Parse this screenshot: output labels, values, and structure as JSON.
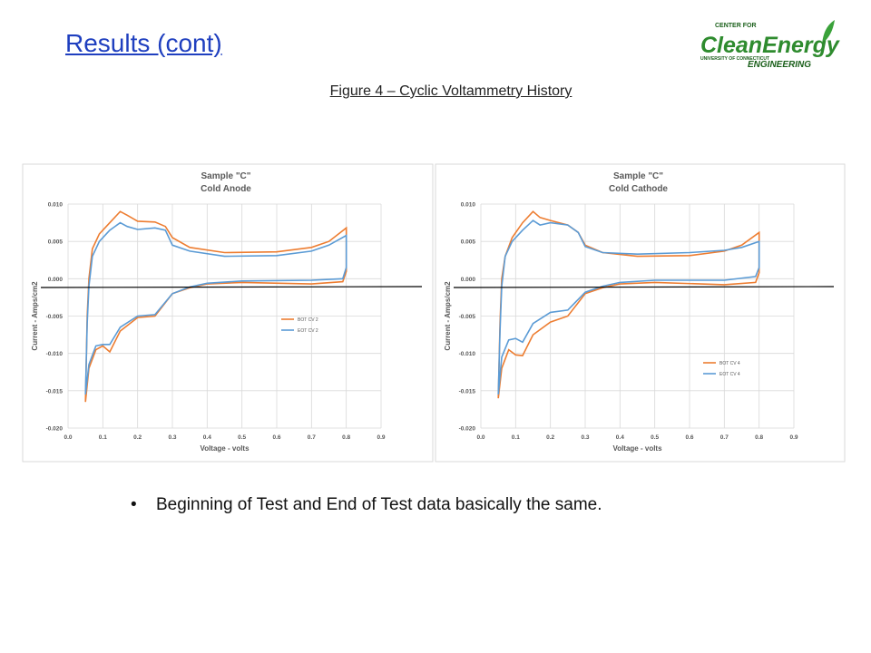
{
  "title": "Results (cont)",
  "caption": "Figure 4 – Cyclic Voltammetry History",
  "bullet": "Beginning of Test and End of Test data basically the same.",
  "logo": {
    "top": "CENTER FOR",
    "main": "CleanEnergy",
    "university": "UNIVERSITY OF CONNECTICUT",
    "bottom": "ENGINEERING"
  },
  "chart_data": [
    {
      "type": "line",
      "title": "Sample \"C\"",
      "subtitle": "Cold Anode",
      "x_label": "Voltage - volts",
      "y_label": "Current - Amps/cm2",
      "xlim": [
        0,
        0.9
      ],
      "ylim": [
        -0.02,
        0.01
      ],
      "grid": true,
      "legend": "right",
      "xticks": [
        {
          "value": 0,
          "label": "0.0"
        },
        0.1,
        0.2,
        0.3,
        0.4,
        0.5,
        0.6,
        0.7,
        0.8,
        0.9
      ],
      "yticks": [
        {
          "value": -0.02,
          "label": "-0.020"
        },
        {
          "value": -0.015,
          "label": "-0.015"
        },
        {
          "value": -0.01,
          "label": "-0.010"
        },
        {
          "value": -0.005,
          "label": "-0.005"
        },
        {
          "value": 0,
          "label": "0.000"
        },
        {
          "value": 0.005,
          "label": "0.005"
        },
        {
          "value": 0.01,
          "label": "0.010"
        }
      ],
      "series": [
        {
          "name": "BOT CV 2",
          "color": "#ed7d31",
          "x": [
            0.05,
            0.055,
            0.06,
            0.07,
            0.09,
            0.12,
            0.15,
            0.17,
            0.2,
            0.25,
            0.28,
            0.3,
            0.35,
            0.45,
            0.6,
            0.7,
            0.75,
            0.8,
            0.8,
            0.79,
            0.7,
            0.5,
            0.4,
            0.35,
            0.3,
            0.25,
            0.2,
            0.15,
            0.12,
            0.1,
            0.08,
            0.06,
            0.05
          ],
          "values": [
            -0.0165,
            -0.005,
            0.0,
            0.004,
            0.006,
            0.0075,
            0.009,
            0.0085,
            0.0077,
            0.0076,
            0.007,
            0.0055,
            0.0042,
            0.0035,
            0.0036,
            0.0042,
            0.005,
            0.0068,
            0.001,
            -0.0004,
            -0.0007,
            -0.0005,
            -0.0007,
            -0.0012,
            -0.002,
            -0.005,
            -0.0052,
            -0.007,
            -0.0098,
            -0.009,
            -0.0095,
            -0.012,
            -0.0165
          ]
        },
        {
          "name": "EOT CV 2",
          "color": "#5b9bd5",
          "x": [
            0.05,
            0.055,
            0.06,
            0.07,
            0.09,
            0.12,
            0.15,
            0.17,
            0.2,
            0.25,
            0.28,
            0.3,
            0.35,
            0.45,
            0.6,
            0.7,
            0.75,
            0.8,
            0.8,
            0.79,
            0.7,
            0.5,
            0.4,
            0.35,
            0.3,
            0.25,
            0.2,
            0.15,
            0.12,
            0.1,
            0.08,
            0.06,
            0.05
          ],
          "values": [
            -0.0155,
            -0.006,
            -0.001,
            0.003,
            0.005,
            0.0065,
            0.0075,
            0.007,
            0.0066,
            0.0068,
            0.0065,
            0.0045,
            0.0037,
            0.003,
            0.0031,
            0.0037,
            0.0045,
            0.0058,
            0.0015,
            0.0,
            -0.0002,
            -0.0003,
            -0.0006,
            -0.0011,
            -0.002,
            -0.0048,
            -0.005,
            -0.0065,
            -0.0088,
            -0.0088,
            -0.009,
            -0.0115,
            -0.0155
          ]
        }
      ]
    },
    {
      "type": "line",
      "title": "Sample \"C\"",
      "subtitle": "Cold Cathode",
      "x_label": "Voltage - volts",
      "y_label": "Current - Amps/cm2",
      "xlim": [
        0,
        0.9
      ],
      "ylim": [
        -0.02,
        0.01
      ],
      "grid": true,
      "legend": "right",
      "xticks": [
        {
          "value": 0,
          "label": "0.0"
        },
        0.1,
        0.2,
        0.3,
        0.4,
        0.5,
        0.6,
        0.7,
        0.8,
        0.9
      ],
      "yticks": [
        {
          "value": -0.02,
          "label": "-0.020"
        },
        {
          "value": -0.015,
          "label": "-0.015"
        },
        {
          "value": -0.01,
          "label": "-0.010"
        },
        {
          "value": -0.005,
          "label": "-0.005"
        },
        {
          "value": 0,
          "label": "0.000"
        },
        {
          "value": 0.005,
          "label": "0.005"
        },
        {
          "value": 0.01,
          "label": "0.010"
        }
      ],
      "series": [
        {
          "name": "BOT CV 4",
          "color": "#ed7d31",
          "x": [
            0.05,
            0.055,
            0.06,
            0.07,
            0.09,
            0.12,
            0.15,
            0.17,
            0.2,
            0.25,
            0.28,
            0.3,
            0.35,
            0.45,
            0.6,
            0.7,
            0.75,
            0.8,
            0.8,
            0.79,
            0.7,
            0.5,
            0.4,
            0.35,
            0.3,
            0.25,
            0.2,
            0.15,
            0.12,
            0.1,
            0.08,
            0.06,
            0.05
          ],
          "values": [
            -0.016,
            -0.006,
            0.0,
            0.003,
            0.0055,
            0.0075,
            0.009,
            0.0082,
            0.0078,
            0.0072,
            0.0062,
            0.0045,
            0.0035,
            0.003,
            0.0031,
            0.0037,
            0.0045,
            0.0062,
            0.0008,
            -0.0005,
            -0.0008,
            -0.0005,
            -0.0007,
            -0.0012,
            -0.002,
            -0.005,
            -0.0058,
            -0.0075,
            -0.0103,
            -0.0102,
            -0.0095,
            -0.012,
            -0.016
          ]
        },
        {
          "name": "EOT CV 4",
          "color": "#5b9bd5",
          "x": [
            0.05,
            0.055,
            0.06,
            0.07,
            0.09,
            0.12,
            0.15,
            0.17,
            0.2,
            0.25,
            0.28,
            0.3,
            0.35,
            0.45,
            0.6,
            0.7,
            0.75,
            0.8,
            0.8,
            0.79,
            0.7,
            0.5,
            0.4,
            0.35,
            0.3,
            0.25,
            0.2,
            0.15,
            0.12,
            0.1,
            0.08,
            0.06,
            0.05
          ],
          "values": [
            -0.0155,
            -0.007,
            -0.001,
            0.003,
            0.005,
            0.0065,
            0.0078,
            0.0072,
            0.0075,
            0.0072,
            0.0062,
            0.0043,
            0.0035,
            0.0033,
            0.0035,
            0.0038,
            0.0042,
            0.005,
            0.0015,
            0.0003,
            -0.0002,
            -0.0002,
            -0.0005,
            -0.001,
            -0.0018,
            -0.0042,
            -0.0045,
            -0.006,
            -0.0085,
            -0.008,
            -0.0082,
            -0.0105,
            -0.0155
          ]
        }
      ]
    }
  ]
}
